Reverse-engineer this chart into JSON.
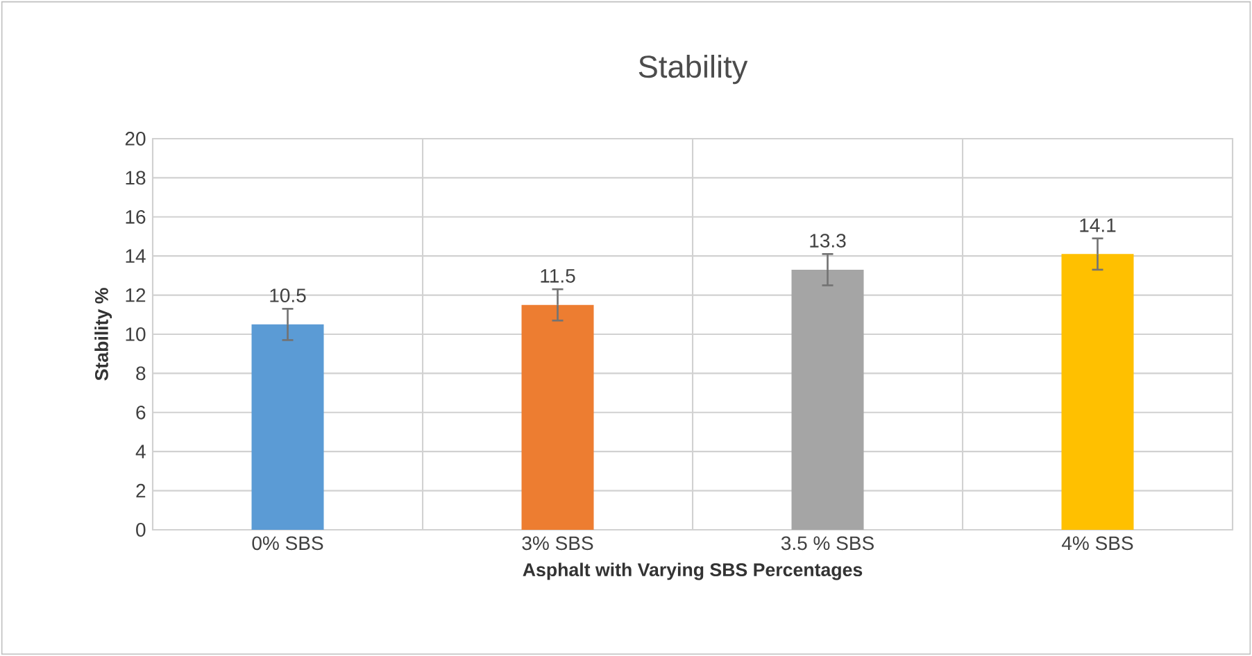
{
  "chart_data": {
    "type": "bar",
    "title": "Stability",
    "xlabel": "Asphalt with Varying SBS Percentages",
    "ylabel": "Stability %",
    "categories": [
      "0% SBS",
      "3% SBS",
      "3.5 % SBS",
      "4% SBS"
    ],
    "values": [
      10.5,
      11.5,
      13.3,
      14.1
    ],
    "errors": [
      0.8,
      0.8,
      0.8,
      0.8
    ],
    "colors": [
      "#5b9bd5",
      "#ed7d31",
      "#a5a5a5",
      "#ffc000"
    ],
    "ylim": [
      0,
      20
    ],
    "yticks": [
      0,
      2,
      4,
      6,
      8,
      10,
      12,
      14,
      16,
      18,
      20
    ],
    "grid": true,
    "data_labels": true
  }
}
